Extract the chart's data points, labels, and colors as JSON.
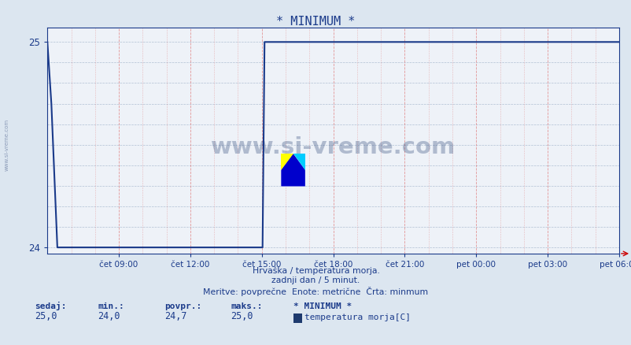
{
  "title": "* MINIMUM *",
  "bg_color": "#dce6f0",
  "plot_bg_color": "#eef2f8",
  "line_color": "#1a3a8a",
  "ylim_min": 23.97,
  "ylim_max": 25.07,
  "yticks": [
    24,
    25
  ],
  "grid_h_color": "#aabbd0",
  "grid_v_color": "#e08080",
  "xtick_labels": [
    "čet 09:00",
    "čet 12:00",
    "čet 15:00",
    "čet 18:00",
    "čet 21:00",
    "pet 00:00",
    "pet 03:00",
    "pet 06:00"
  ],
  "subtitle1": "Hrvaška / temperatura morja.",
  "subtitle2": "zadnji dan / 5 minut.",
  "subtitle3": "Meritve: povprečne  Enote: metrične  Črta: minmum",
  "legend_title": "* MINIMUM *",
  "legend_label": "temperatura morja[C]",
  "legend_color": "#1e3a6e",
  "footer_labels": [
    "sedaj:",
    "min.:",
    "povpr.:",
    "maks.:"
  ],
  "footer_values": [
    "25,0",
    "24,0",
    "24,7",
    "25,0"
  ],
  "watermark": "www.si-vreme.com",
  "watermark_color": "#1e3a6e",
  "left_watermark": "www.si-vreme.com",
  "n_points": 288,
  "min_val": 24.0,
  "max_val": 25.0,
  "title_color": "#1a3a8a",
  "tick_color": "#1a3a8a",
  "subtitle_color": "#1a3a8a",
  "line_width": 1.5,
  "spine_color": "#1a3a8a"
}
